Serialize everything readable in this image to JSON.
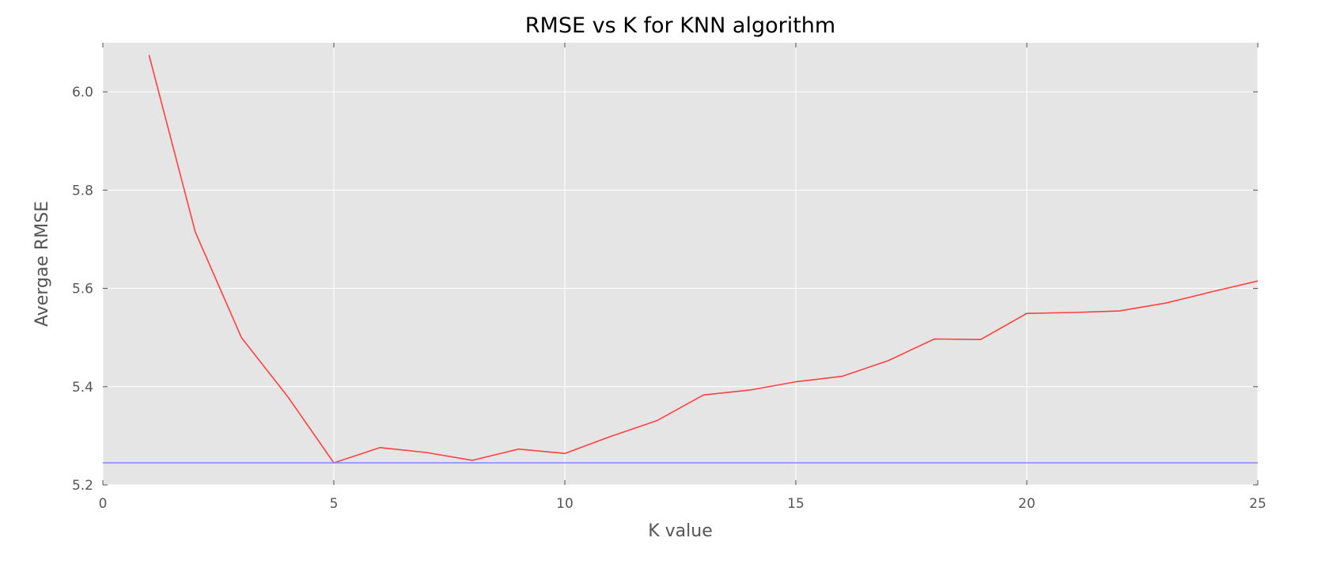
{
  "chart_data": {
    "type": "line",
    "title": "RMSE vs K for KNN algorithm",
    "xlabel": "K value",
    "ylabel": "Avergae RMSE",
    "xlim": [
      0,
      25
    ],
    "ylim": [
      5.2,
      6.1
    ],
    "xticks": [
      "0",
      "5",
      "10",
      "15",
      "20",
      "25"
    ],
    "yticks": [
      "5.2",
      "5.4",
      "5.6",
      "5.8",
      "6.0"
    ],
    "grid": true,
    "legend": "none",
    "series": [
      {
        "color": "#ff4040",
        "style": "solid",
        "x": [
          1,
          2,
          3,
          4,
          5,
          6,
          7,
          8,
          9,
          10,
          11,
          12,
          13,
          14,
          15,
          16,
          17,
          18,
          19,
          20,
          21,
          22,
          23,
          24,
          25
        ],
        "y": [
          6.075,
          5.715,
          5.5,
          5.38,
          5.245,
          5.276,
          5.266,
          5.25,
          5.273,
          5.264,
          5.299,
          5.331,
          5.383,
          5.393,
          5.41,
          5.421,
          5.453,
          5.497,
          5.496,
          5.549,
          5.551,
          5.554,
          5.57,
          5.593,
          5.615
        ]
      },
      {
        "color": "#8c8cff",
        "style": "solid",
        "x": [
          0,
          25
        ],
        "y": [
          5.245,
          5.245
        ]
      }
    ],
    "colors": {
      "plot_background": "#e5e5e5",
      "grid": "#ffffff",
      "tick_text": "#555555",
      "title_text": "#000000"
    }
  }
}
